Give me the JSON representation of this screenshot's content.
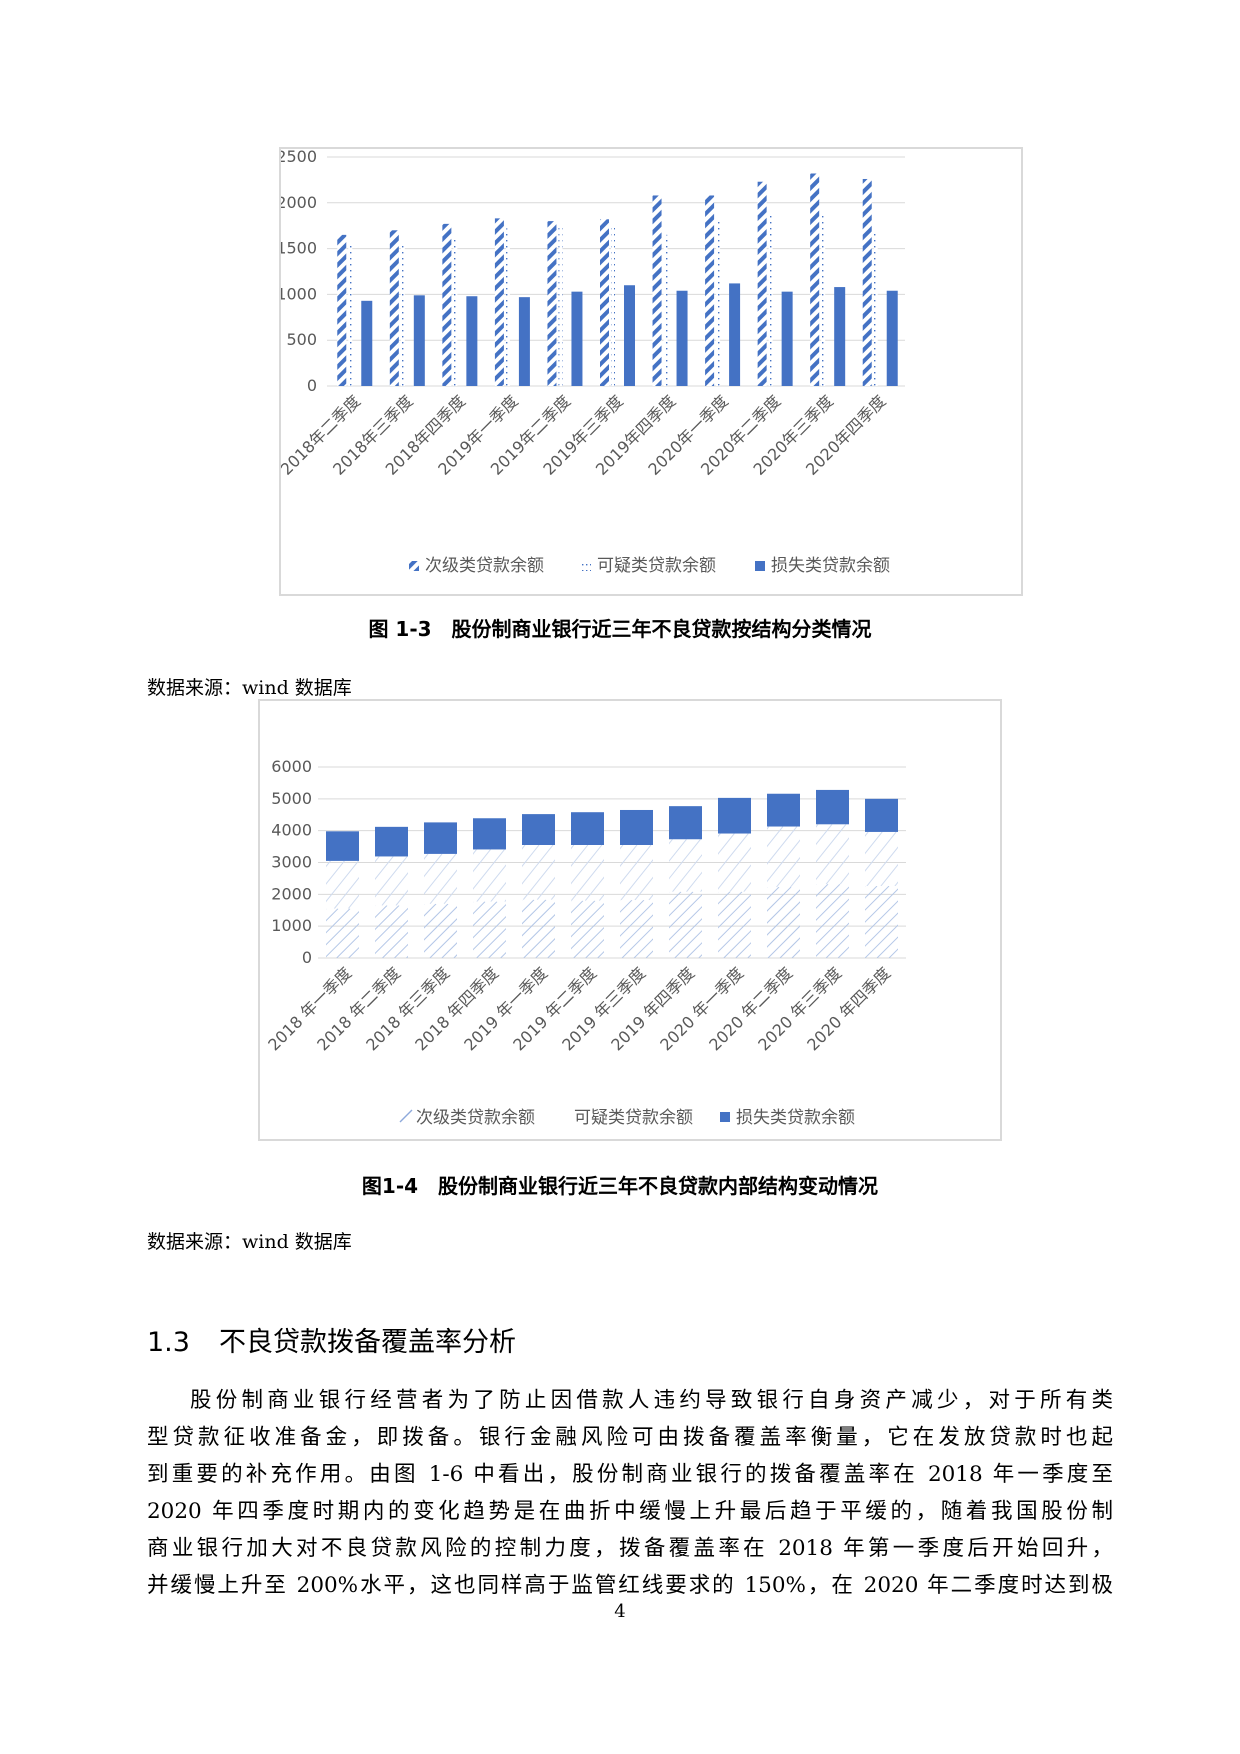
{
  "charts": {
    "chart1": {
      "legend": [
        "次级类贷款余额",
        "可疑类贷款余额",
        "损失类贷款余额"
      ],
      "y_ticks": [
        "0",
        "500",
        "1000",
        "1500",
        "2000",
        "2500"
      ]
    },
    "chart2": {
      "legend": [
        "次级类贷款余额",
        "可疑类贷款余额",
        "损失类贷款余额"
      ],
      "y_ticks": [
        "0",
        "1000",
        "2000",
        "3000",
        "4000",
        "5000",
        "6000"
      ]
    }
  },
  "chart_data": [
    {
      "type": "bar",
      "categories": [
        "2018年二季度",
        "2018年三季度",
        "2018年四季度",
        "2019年一季度",
        "2019年二季度",
        "2019年三季度",
        "2019年四季度",
        "2020年一季度",
        "2020年二季度",
        "2020年三季度",
        "2020年四季度"
      ],
      "series": [
        {
          "name": "次级类贷款余额",
          "values": [
            1650,
            1700,
            1770,
            1830,
            1800,
            1820,
            2080,
            2080,
            2230,
            2320,
            2260
          ]
        },
        {
          "name": "可疑类贷款余额",
          "values": [
            1540,
            1570,
            1640,
            1720,
            1750,
            1730,
            1650,
            1830,
            1900,
            1880,
            1700
          ]
        },
        {
          "name": "损失类贷款余额",
          "values": [
            930,
            990,
            980,
            970,
            1030,
            1100,
            1040,
            1120,
            1030,
            1080,
            1040
          ]
        }
      ],
      "ylim": [
        0,
        2500
      ],
      "grid": true,
      "legend_position": "bottom"
    },
    {
      "type": "bar",
      "stacked": true,
      "categories": [
        "2018 年一季度",
        "2018 年二季度",
        "2018 年三季度",
        "2018 年四季度",
        "2019 年一季度",
        "2019 年二季度",
        "2019 年三季度",
        "2019 年四季度",
        "2020 年一季度",
        "2020 年二季度",
        "2020 年三季度",
        "2020 年四季度"
      ],
      "series": [
        {
          "name": "次级类贷款余额",
          "values": [
            1550,
            1650,
            1700,
            1770,
            1830,
            1800,
            1820,
            2080,
            2080,
            2230,
            2320,
            2260
          ]
        },
        {
          "name": "可疑类贷款余额",
          "values": [
            1500,
            1540,
            1570,
            1640,
            1720,
            1750,
            1730,
            1650,
            1830,
            1900,
            1880,
            1700
          ]
        },
        {
          "name": "损失类贷款余额",
          "values": [
            930,
            930,
            990,
            980,
            970,
            1030,
            1100,
            1040,
            1120,
            1030,
            1080,
            1040
          ]
        }
      ],
      "ylim": [
        0,
        6000
      ],
      "grid": true,
      "legend_position": "bottom"
    }
  ],
  "captions": {
    "fig3": "图 1-3　股份制商业银行近三年不良贷款按结构分类情况",
    "fig4": "图1-4　股份制商业银行近三年不良贷款内部结构变动情况",
    "source1": "数据来源：wind 数据库",
    "source2": "数据来源：wind 数据库"
  },
  "section": {
    "number": "1.3",
    "title": "不良贷款拨备覆盖率分析"
  },
  "paragraph_lines": [
    "股份制商业银行经营者为了防止因借款人违约导致银行自身资产减少，对于所有类",
    "型贷款征收准备金，即拨备。银行金融风险可由拨备覆盖率衡量，它在发放贷款时也起",
    "到重要的补充作用。由图 1-6 中看出，股份制商业银行的拨备覆盖率在 2018 年一季度至",
    "2020 年四季度时期内的变化趋势是在曲折中缓慢上升最后趋于平缓的，随着我国股份制",
    "商业银行加大对不良贷款风险的控制力度，拨备覆盖率在 2018 年第一季度后开始回升，",
    "并缓慢上升至 200%水平，这也同样高于监管红线要求的 150%，在 2020 年二季度时达到极"
  ],
  "page_number": "4",
  "colors": {
    "bar_blue": "#4472c4",
    "grid": "#d9d9d9",
    "text_gray": "#595959"
  }
}
